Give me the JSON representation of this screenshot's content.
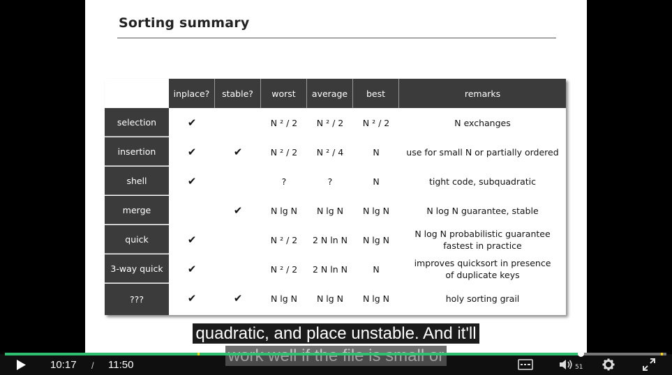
{
  "slide": {
    "title": "Sorting summary",
    "headers": [
      "inplace?",
      "stable?",
      "worst",
      "average",
      "best",
      "remarks"
    ],
    "rows": [
      {
        "name": "selection",
        "inplace": "✔",
        "stable": "",
        "worst": "N ² / 2",
        "average": "N ² / 2",
        "best": "N ² / 2",
        "remarks": "N exchanges"
      },
      {
        "name": "insertion",
        "inplace": "✔",
        "stable": "✔",
        "worst": "N ² / 2",
        "average": "N ² / 4",
        "best": "N",
        "remarks": "use for small N or partially ordered"
      },
      {
        "name": "shell",
        "inplace": "✔",
        "stable": "",
        "worst": "?",
        "average": "?",
        "best": "N",
        "remarks": "tight code, subquadratic"
      },
      {
        "name": "merge",
        "inplace": "",
        "stable": "✔",
        "worst": "N lg N",
        "average": "N lg N",
        "best": "N lg N",
        "remarks": "N log N  guarantee, stable"
      },
      {
        "name": "quick",
        "inplace": "✔",
        "stable": "",
        "worst": "N ² / 2",
        "average": "2 N ln N",
        "best": "N lg N",
        "remarks": "N log N  probabilistic guarantee fastest in practice"
      },
      {
        "name": "3-way quick",
        "inplace": "✔",
        "stable": "",
        "worst": "N ² / 2",
        "average": "2 N ln N",
        "best": "N",
        "remarks": "improves quicksort in presence of duplicate keys"
      },
      {
        "name": "???",
        "inplace": "✔",
        "stable": "✔",
        "worst": "N lg N",
        "average": "N lg N",
        "best": "N lg N",
        "remarks": "holy sorting grail"
      }
    ]
  },
  "captions": {
    "line1": "quadratic, and place unstable. And it'll",
    "line2": "work well if the file is small or"
  },
  "player": {
    "current_time": "10:17",
    "separator": "/",
    "duration": "11:50",
    "progress": 0.87,
    "volume_level": "51",
    "icons": {
      "play": "play-icon",
      "captions": "captions-icon",
      "volume": "volume-icon",
      "settings": "gear-icon",
      "fullscreen": "fullscreen-icon"
    }
  }
}
